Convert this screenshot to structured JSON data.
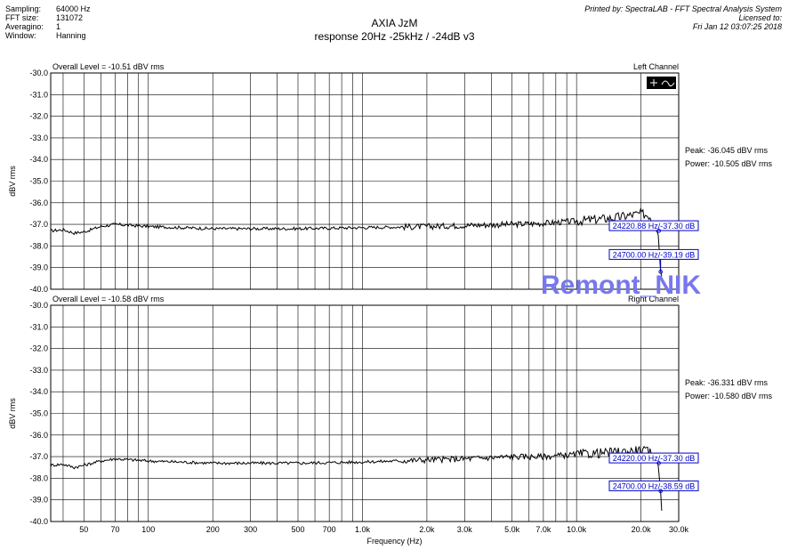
{
  "header": {
    "left": [
      {
        "key": "Sampling:",
        "value": "64000 Hz"
      },
      {
        "key": "FFT size:",
        "value": "131072"
      },
      {
        "key": "Averagino:",
        "value": "1"
      },
      {
        "key": "Window:",
        "value": "Hanning"
      }
    ],
    "right": [
      "Printed by: SpectraLAB - FFT Spectral Analysis System",
      "Licensed to:",
      "Fri Jan 12 03:07:25 2018"
    ]
  },
  "title": "AXIA JzM",
  "subtitle": "response 20Hz -25kHz / -24dB  v3",
  "watermark": "Remont_NIK",
  "xlabel": "Frequency (Hz)",
  "colors": {
    "trace": "#000000",
    "marker": "#0000cc",
    "watermark": "#7777ee"
  },
  "chart_data": [
    {
      "type": "line",
      "channel": "Left Channel",
      "overall": "Overall Level = -10.51 dBV rms",
      "ylabel": "dBV rms",
      "ylim": [
        -40,
        -30
      ],
      "yticks": [
        "-30.0",
        "-31.0",
        "-32.0",
        "-33.0",
        "-34.0",
        "-35.0",
        "-36.0",
        "-37.0",
        "-38.0",
        "-39.0",
        "-40.0"
      ],
      "xscale": "log",
      "xlim": [
        35,
        30000
      ],
      "xticks": [
        "50",
        "70",
        "100",
        "200",
        "300",
        "500",
        "700",
        "1.0k",
        "2.0k",
        "3.0k",
        "5.0k",
        "7.0k",
        "10.0k",
        "20.0k",
        "30.0k"
      ],
      "xtick_values": [
        50,
        70,
        100,
        200,
        300,
        500,
        700,
        1000,
        2000,
        3000,
        5000,
        7000,
        10000,
        20000,
        30000
      ],
      "peak": "Peak: -36.045 dBV rms",
      "power": "Power: -10.505 dBV rms",
      "markers": [
        "24220.88 Hz/-37.30 dB",
        "24700.00 Hz/-39.19 dB"
      ],
      "x": [
        35,
        40,
        45,
        50,
        60,
        70,
        100,
        200,
        500,
        1000,
        2000,
        3000,
        5000,
        7000,
        10000,
        15000,
        20000,
        22000,
        24000,
        24700,
        25000
      ],
      "y": [
        -37.3,
        -37.25,
        -37.4,
        -37.35,
        -37.1,
        -37.0,
        -37.1,
        -37.2,
        -37.2,
        -37.15,
        -37.1,
        -37.05,
        -37.0,
        -36.95,
        -36.85,
        -36.7,
        -36.5,
        -36.6,
        -37.3,
        -39.19,
        -39.4
      ]
    },
    {
      "type": "line",
      "channel": "Right Channel",
      "overall": "Overall Level = -10.58 dBV rms",
      "ylabel": "dBV rms",
      "ylim": [
        -40,
        -30
      ],
      "yticks": [
        "-30.0",
        "-31.0",
        "-32.0",
        "-33.0",
        "-34.0",
        "-35.0",
        "-36.0",
        "-37.0",
        "-38.0",
        "-39.0",
        "-40.0"
      ],
      "xscale": "log",
      "xlim": [
        35,
        30000
      ],
      "xticks": [
        "50",
        "70",
        "100",
        "200",
        "300",
        "500",
        "700",
        "1.0k",
        "2.0k",
        "3.0k",
        "5.0k",
        "7.0k",
        "10.0k",
        "20.0k",
        "30.0k"
      ],
      "xtick_values": [
        50,
        70,
        100,
        200,
        300,
        500,
        700,
        1000,
        2000,
        3000,
        5000,
        7000,
        10000,
        20000,
        30000
      ],
      "peak": "Peak: -36.331 dBV rms",
      "power": "Power: -10.580 dBV rms",
      "markers": [
        "24220.00 Hz/-37.30 dB",
        "24700.00 Hz/-38.59 dB"
      ],
      "x": [
        35,
        40,
        45,
        50,
        60,
        70,
        100,
        200,
        500,
        1000,
        2000,
        3000,
        5000,
        7000,
        10000,
        15000,
        20000,
        22000,
        24000,
        24700,
        25000
      ],
      "y": [
        -37.4,
        -37.35,
        -37.5,
        -37.4,
        -37.2,
        -37.1,
        -37.2,
        -37.3,
        -37.3,
        -37.25,
        -37.15,
        -37.1,
        -37.0,
        -37.0,
        -36.9,
        -36.8,
        -36.7,
        -36.8,
        -37.3,
        -38.59,
        -39.5
      ]
    }
  ]
}
